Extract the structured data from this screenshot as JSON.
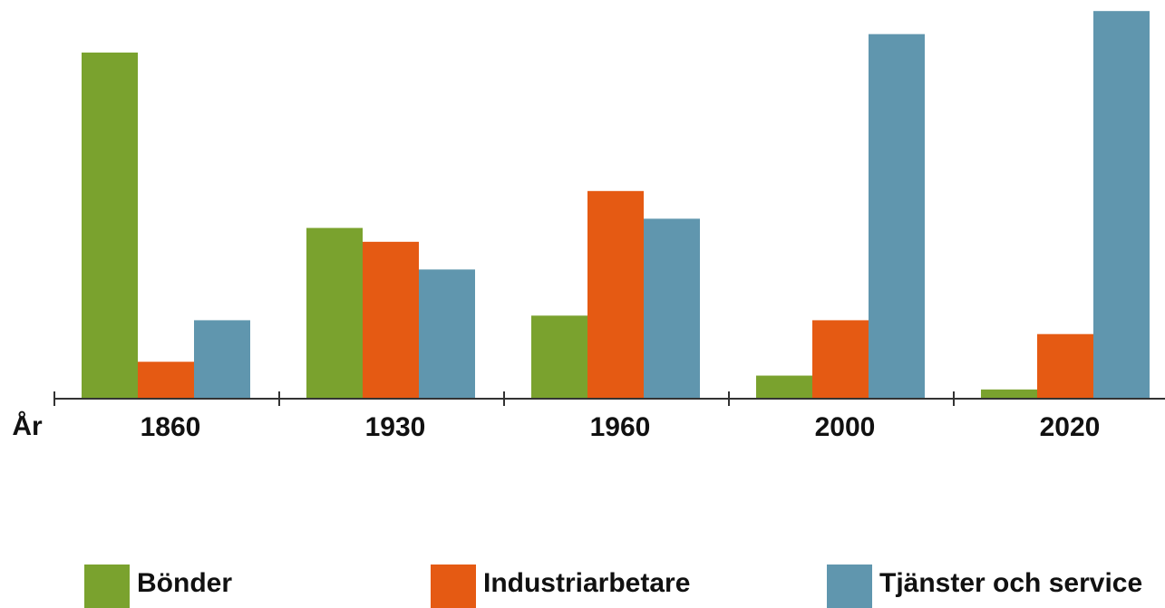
{
  "chart_data": {
    "type": "bar",
    "x_label": "År",
    "categories": [
      "1860",
      "1930",
      "1960",
      "2000",
      "2020"
    ],
    "series": [
      {
        "name": "Bönder",
        "color": "#7aa22e",
        "values": [
          75,
          37,
          18,
          5,
          2
        ]
      },
      {
        "name": "Industriarbetare",
        "color": "#e55a13",
        "values": [
          8,
          34,
          45,
          17,
          14
        ]
      },
      {
        "name": "Tjänster och service",
        "color": "#6096ae",
        "values": [
          17,
          28,
          39,
          79,
          84
        ]
      }
    ],
    "ylim": [
      0,
      86
    ],
    "legend": "bottom"
  }
}
